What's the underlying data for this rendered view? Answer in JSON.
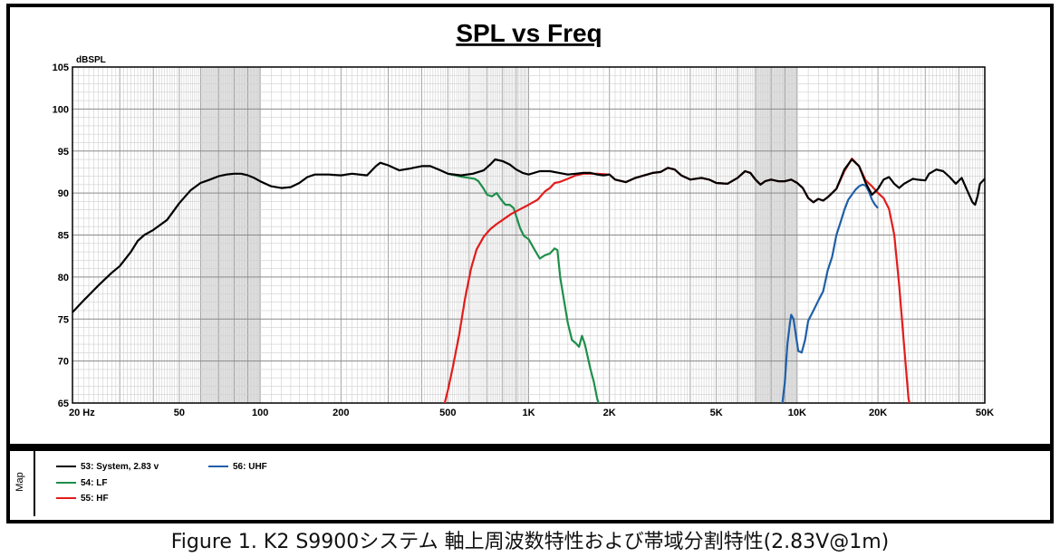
{
  "chart_data": {
    "type": "line",
    "title": "SPL vs Freq",
    "ylabel": "dBSPL",
    "xscale": "log",
    "xlim": [
      20,
      50000
    ],
    "ylim": [
      65,
      105
    ],
    "yticks": [
      65,
      70,
      75,
      80,
      85,
      90,
      95,
      100,
      105
    ],
    "xticks": [
      {
        "v": 20,
        "label": "20  Hz"
      },
      {
        "v": 50,
        "label": "50"
      },
      {
        "v": 100,
        "label": "100"
      },
      {
        "v": 200,
        "label": "200"
      },
      {
        "v": 500,
        "label": "500"
      },
      {
        "v": 1000,
        "label": "1K"
      },
      {
        "v": 2000,
        "label": "2K"
      },
      {
        "v": 5000,
        "label": "5K"
      },
      {
        "v": 10000,
        "label": "10K"
      },
      {
        "v": 20000,
        "label": "20K"
      },
      {
        "v": 50000,
        "label": "50K"
      }
    ],
    "grid": true,
    "shaded_bands": [
      [
        60,
        100
      ],
      [
        7000,
        10000
      ]
    ],
    "series": [
      {
        "name": "53: System, 2.83 v",
        "color": "#000000",
        "points": [
          [
            20,
            75.8
          ],
          [
            22,
            77.2
          ],
          [
            25,
            79
          ],
          [
            28,
            80.5
          ],
          [
            30,
            81.3
          ],
          [
            33,
            83
          ],
          [
            35,
            84.3
          ],
          [
            37,
            85
          ],
          [
            40,
            85.6
          ],
          [
            45,
            86.8
          ],
          [
            50,
            88.8
          ],
          [
            55,
            90.3
          ],
          [
            60,
            91.2
          ],
          [
            65,
            91.6
          ],
          [
            70,
            92
          ],
          [
            75,
            92.2
          ],
          [
            80,
            92.3
          ],
          [
            85,
            92.3
          ],
          [
            90,
            92.1
          ],
          [
            95,
            91.8
          ],
          [
            100,
            91.4
          ],
          [
            110,
            90.8
          ],
          [
            120,
            90.6
          ],
          [
            130,
            90.7
          ],
          [
            140,
            91.2
          ],
          [
            150,
            91.9
          ],
          [
            160,
            92.2
          ],
          [
            180,
            92.2
          ],
          [
            200,
            92.1
          ],
          [
            220,
            92.3
          ],
          [
            250,
            92.1
          ],
          [
            270,
            93.2
          ],
          [
            280,
            93.6
          ],
          [
            300,
            93.3
          ],
          [
            330,
            92.7
          ],
          [
            360,
            92.9
          ],
          [
            400,
            93.2
          ],
          [
            430,
            93.2
          ],
          [
            470,
            92.7
          ],
          [
            500,
            92.3
          ],
          [
            560,
            92.1
          ],
          [
            620,
            92.3
          ],
          [
            680,
            92.7
          ],
          [
            720,
            93.4
          ],
          [
            750,
            94
          ],
          [
            800,
            93.8
          ],
          [
            850,
            93.4
          ],
          [
            900,
            92.8
          ],
          [
            950,
            92.4
          ],
          [
            1000,
            92.2
          ],
          [
            1100,
            92.6
          ],
          [
            1200,
            92.6
          ],
          [
            1300,
            92.4
          ],
          [
            1400,
            92.2
          ],
          [
            1500,
            92.3
          ],
          [
            1600,
            92.4
          ],
          [
            1700,
            92.4
          ],
          [
            1800,
            92.2
          ],
          [
            1900,
            92.1
          ],
          [
            2000,
            92.2
          ],
          [
            2100,
            91.6
          ],
          [
            2300,
            91.3
          ],
          [
            2500,
            91.8
          ],
          [
            2700,
            92.1
          ],
          [
            2900,
            92.4
          ],
          [
            3100,
            92.5
          ],
          [
            3300,
            93
          ],
          [
            3500,
            92.8
          ],
          [
            3700,
            92.1
          ],
          [
            4000,
            91.6
          ],
          [
            4400,
            91.8
          ],
          [
            4700,
            91.6
          ],
          [
            5000,
            91.2
          ],
          [
            5500,
            91.1
          ],
          [
            6000,
            91.8
          ],
          [
            6400,
            92.6
          ],
          [
            6700,
            92.4
          ],
          [
            7000,
            91.6
          ],
          [
            7300,
            91
          ],
          [
            7600,
            91.4
          ],
          [
            8000,
            91.6
          ],
          [
            8500,
            91.4
          ],
          [
            9000,
            91.4
          ],
          [
            9500,
            91.6
          ],
          [
            10000,
            91.2
          ],
          [
            10500,
            90.6
          ],
          [
            11000,
            89.4
          ],
          [
            11500,
            88.9
          ],
          [
            12000,
            89.3
          ],
          [
            12500,
            89.1
          ],
          [
            13000,
            89.5
          ],
          [
            14000,
            90.5
          ],
          [
            15000,
            92.8
          ],
          [
            16000,
            94
          ],
          [
            17000,
            93.2
          ],
          [
            18000,
            91.2
          ],
          [
            19000,
            89.8
          ],
          [
            20000,
            90.5
          ],
          [
            21000,
            91.6
          ],
          [
            22000,
            91.9
          ],
          [
            23000,
            91.1
          ],
          [
            24000,
            90.6
          ],
          [
            25000,
            91.1
          ],
          [
            27000,
            91.7
          ],
          [
            28000,
            91.6
          ],
          [
            30000,
            91.5
          ],
          [
            31000,
            92.3
          ],
          [
            33000,
            92.8
          ],
          [
            35000,
            92.6
          ],
          [
            37000,
            91.9
          ],
          [
            39000,
            91.1
          ],
          [
            41000,
            91.8
          ],
          [
            43000,
            90.3
          ],
          [
            45000,
            88.9
          ],
          [
            46000,
            88.6
          ],
          [
            47000,
            89.6
          ],
          [
            48000,
            91.1
          ],
          [
            49000,
            91.4
          ],
          [
            50000,
            91.7
          ],
          [
            51000,
            90.6
          ],
          [
            52000,
            88.2
          ]
        ]
      },
      {
        "name": "54: LF",
        "color": "#1f8f4b",
        "points": [
          [
            500,
            92.3
          ],
          [
            550,
            92
          ],
          [
            600,
            91.8
          ],
          [
            630,
            91.7
          ],
          [
            650,
            91.4
          ],
          [
            680,
            90.5
          ],
          [
            700,
            89.8
          ],
          [
            730,
            89.6
          ],
          [
            760,
            90
          ],
          [
            790,
            89.2
          ],
          [
            820,
            88.6
          ],
          [
            850,
            88.6
          ],
          [
            880,
            88.2
          ],
          [
            900,
            87.2
          ],
          [
            930,
            85.8
          ],
          [
            960,
            84.9
          ],
          [
            1000,
            84.5
          ],
          [
            1050,
            83.3
          ],
          [
            1100,
            82.2
          ],
          [
            1150,
            82.6
          ],
          [
            1200,
            82.8
          ],
          [
            1250,
            83.4
          ],
          [
            1280,
            83.2
          ],
          [
            1310,
            80
          ],
          [
            1350,
            77.5
          ],
          [
            1400,
            74.5
          ],
          [
            1450,
            72.5
          ],
          [
            1500,
            72.1
          ],
          [
            1540,
            71.7
          ],
          [
            1580,
            73
          ],
          [
            1620,
            72
          ],
          [
            1660,
            70.5
          ],
          [
            1700,
            69
          ],
          [
            1750,
            67.5
          ],
          [
            1800,
            65.5
          ],
          [
            1830,
            64.8
          ]
        ]
      },
      {
        "name": "55: HF",
        "color": "#e21c1c",
        "points": [
          [
            485,
            64.8
          ],
          [
            500,
            66.5
          ],
          [
            520,
            69
          ],
          [
            550,
            73
          ],
          [
            580,
            77.5
          ],
          [
            610,
            81
          ],
          [
            640,
            83.3
          ],
          [
            680,
            84.8
          ],
          [
            720,
            85.7
          ],
          [
            760,
            86.3
          ],
          [
            800,
            86.8
          ],
          [
            860,
            87.5
          ],
          [
            920,
            88
          ],
          [
            1000,
            88.6
          ],
          [
            1080,
            89.2
          ],
          [
            1150,
            90.2
          ],
          [
            1200,
            90.6
          ],
          [
            1250,
            91.2
          ],
          [
            1300,
            91.3
          ],
          [
            1400,
            91.7
          ],
          [
            1500,
            92.1
          ],
          [
            1600,
            92.3
          ],
          [
            1800,
            92.3
          ],
          [
            2000,
            92.2
          ],
          [
            2100,
            91.6
          ],
          [
            2300,
            91.3
          ],
          [
            2500,
            91.8
          ],
          [
            2700,
            92.1
          ],
          [
            2900,
            92.4
          ],
          [
            3100,
            92.5
          ],
          [
            3300,
            93
          ],
          [
            3500,
            92.8
          ],
          [
            3700,
            92.1
          ],
          [
            4000,
            91.6
          ],
          [
            4400,
            91.8
          ],
          [
            4700,
            91.6
          ],
          [
            5000,
            91.2
          ],
          [
            5500,
            91.1
          ],
          [
            6000,
            91.8
          ],
          [
            6400,
            92.6
          ],
          [
            6700,
            92.4
          ],
          [
            7000,
            91.6
          ],
          [
            7300,
            91
          ],
          [
            7600,
            91.4
          ],
          [
            8000,
            91.6
          ],
          [
            8500,
            91.4
          ],
          [
            9000,
            91.4
          ],
          [
            9500,
            91.6
          ],
          [
            10000,
            91.2
          ],
          [
            10500,
            90.6
          ],
          [
            11000,
            89.4
          ],
          [
            11500,
            88.9
          ],
          [
            12000,
            89.3
          ],
          [
            12500,
            89.1
          ],
          [
            13000,
            89.5
          ],
          [
            14000,
            90.5
          ],
          [
            15000,
            92.6
          ],
          [
            16000,
            94.1
          ],
          [
            17000,
            93.2
          ],
          [
            18000,
            91.5
          ],
          [
            19000,
            90.8
          ],
          [
            20000,
            90
          ],
          [
            21000,
            89.4
          ],
          [
            22000,
            88.1
          ],
          [
            23000,
            85
          ],
          [
            24000,
            79
          ],
          [
            25000,
            72
          ],
          [
            26000,
            65.5
          ],
          [
            26300,
            64.8
          ]
        ]
      },
      {
        "name": "56: UHF",
        "color": "#1f5fa8",
        "points": [
          [
            8800,
            64.8
          ],
          [
            9000,
            67.5
          ],
          [
            9200,
            72
          ],
          [
            9400,
            74.5
          ],
          [
            9500,
            75.5
          ],
          [
            9700,
            75
          ],
          [
            9900,
            73
          ],
          [
            10100,
            71.2
          ],
          [
            10400,
            71
          ],
          [
            10700,
            72.5
          ],
          [
            11000,
            74.8
          ],
          [
            11500,
            76
          ],
          [
            12000,
            77.2
          ],
          [
            12500,
            78.3
          ],
          [
            13000,
            80.8
          ],
          [
            13500,
            82.4
          ],
          [
            14000,
            85
          ],
          [
            14500,
            86.5
          ],
          [
            15000,
            88
          ],
          [
            15500,
            89.2
          ],
          [
            16000,
            89.8
          ],
          [
            16500,
            90.4
          ],
          [
            17000,
            90.8
          ],
          [
            17500,
            91
          ],
          [
            18000,
            90.9
          ],
          [
            18500,
            90.2
          ],
          [
            19000,
            89.2
          ],
          [
            19500,
            88.6
          ],
          [
            20000,
            88.2
          ]
        ]
      }
    ]
  },
  "legend": {
    "map_label": "Map"
  },
  "caption": "Figure 1. K2 S9900システム 軸上周波数特性および帯域分割特性(2.83V@1m)"
}
